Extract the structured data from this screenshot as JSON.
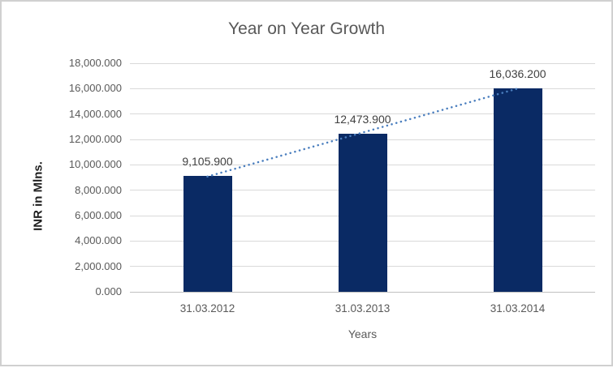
{
  "window": {
    "background": "#ffffff",
    "border_color": "#d0d0d0"
  },
  "chart_data": {
    "type": "bar",
    "title": "Year on Year Growth",
    "categories": [
      "31.03.2012",
      "31.03.2013",
      "31.03.2014"
    ],
    "series": [
      {
        "name": "INR in Mlns.",
        "values": [
          9105.9,
          12473.9,
          16036.2
        ],
        "data_labels": [
          "9,105.900",
          "12,473.900",
          "16,036.200"
        ]
      }
    ],
    "trendline": {
      "type": "linear",
      "style": "dotted",
      "color": "#4a7ebe",
      "applies_to": "INR in Mlns."
    },
    "xlabel": "Years",
    "ylabel": "INR in Mlns.",
    "ylim": [
      0,
      18000
    ],
    "ytick_step": 2000,
    "ytick_labels": [
      "0.000",
      "2,000.000",
      "4,000.000",
      "6,000.000",
      "8,000.000",
      "10,000.000",
      "12,000.000",
      "14,000.000",
      "16,000.000",
      "18,000.000"
    ],
    "grid": true,
    "legend_position": "none",
    "colors": {
      "bar": "#0a2a64",
      "title": "#595959",
      "tick_text": "#595959",
      "data_label_text": "#404040",
      "gridline": "#d9d9d9",
      "axis_line": "#c0c0c0",
      "y_axis_title_text": "#1f1f1f"
    }
  }
}
